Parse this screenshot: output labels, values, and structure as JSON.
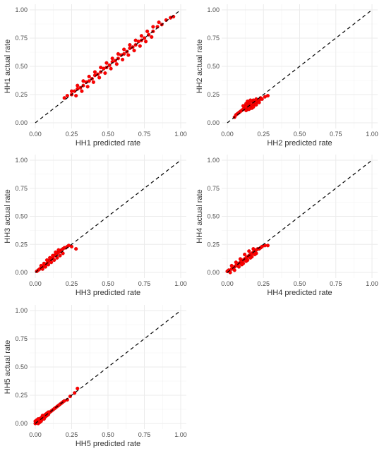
{
  "chart_data": [
    {
      "type": "scatter",
      "xlabel": "HH1 predicted rate",
      "ylabel": "HH1 actual rate",
      "xlim": [
        0,
        1
      ],
      "ylim": [
        0,
        1
      ],
      "xticks": [
        "0.00",
        "0.25",
        "0.50",
        "0.75",
        "1.00"
      ],
      "yticks": [
        "0.00",
        "0.25",
        "0.50",
        "0.75",
        "1.00"
      ],
      "grid": true,
      "reference_line": {
        "style": "dashed",
        "from": [
          0,
          0
        ],
        "to": [
          1,
          1
        ]
      },
      "point_color": "#ff0000",
      "points": [
        [
          0.2,
          0.22
        ],
        [
          0.22,
          0.24
        ],
        [
          0.25,
          0.25
        ],
        [
          0.27,
          0.28
        ],
        [
          0.29,
          0.3
        ],
        [
          0.31,
          0.31
        ],
        [
          0.33,
          0.33
        ],
        [
          0.35,
          0.36
        ],
        [
          0.37,
          0.37
        ],
        [
          0.39,
          0.39
        ],
        [
          0.41,
          0.42
        ],
        [
          0.43,
          0.43
        ],
        [
          0.45,
          0.45
        ],
        [
          0.47,
          0.48
        ],
        [
          0.49,
          0.49
        ],
        [
          0.51,
          0.51
        ],
        [
          0.53,
          0.54
        ],
        [
          0.55,
          0.55
        ],
        [
          0.57,
          0.57
        ],
        [
          0.59,
          0.6
        ],
        [
          0.61,
          0.61
        ],
        [
          0.63,
          0.63
        ],
        [
          0.65,
          0.66
        ],
        [
          0.67,
          0.67
        ],
        [
          0.69,
          0.69
        ],
        [
          0.71,
          0.72
        ],
        [
          0.73,
          0.73
        ],
        [
          0.75,
          0.75
        ],
        [
          0.78,
          0.78
        ],
        [
          0.81,
          0.81
        ],
        [
          0.84,
          0.85
        ],
        [
          0.87,
          0.87
        ],
        [
          0.9,
          0.91
        ],
        [
          0.93,
          0.93
        ],
        [
          0.95,
          0.94
        ],
        [
          0.28,
          0.24
        ],
        [
          0.32,
          0.28
        ],
        [
          0.36,
          0.32
        ],
        [
          0.4,
          0.36
        ],
        [
          0.44,
          0.4
        ],
        [
          0.48,
          0.44
        ],
        [
          0.52,
          0.48
        ],
        [
          0.56,
          0.52
        ],
        [
          0.6,
          0.56
        ],
        [
          0.64,
          0.6
        ],
        [
          0.68,
          0.64
        ],
        [
          0.72,
          0.68
        ],
        [
          0.76,
          0.72
        ],
        [
          0.8,
          0.76
        ],
        [
          0.25,
          0.28
        ],
        [
          0.29,
          0.33
        ],
        [
          0.33,
          0.37
        ],
        [
          0.37,
          0.41
        ],
        [
          0.41,
          0.45
        ],
        [
          0.45,
          0.49
        ],
        [
          0.49,
          0.53
        ],
        [
          0.53,
          0.57
        ],
        [
          0.57,
          0.61
        ],
        [
          0.61,
          0.65
        ],
        [
          0.65,
          0.69
        ],
        [
          0.69,
          0.73
        ],
        [
          0.73,
          0.77
        ],
        [
          0.77,
          0.81
        ],
        [
          0.81,
          0.85
        ],
        [
          0.85,
          0.89
        ]
      ]
    },
    {
      "type": "scatter",
      "xlabel": "HH2 predicted rate",
      "ylabel": "HH2 actual rate",
      "xlim": [
        0,
        1
      ],
      "ylim": [
        0,
        1
      ],
      "xticks": [
        "0.00",
        "0.25",
        "0.50",
        "0.75",
        "1.00"
      ],
      "yticks": [
        "0.00",
        "0.25",
        "0.50",
        "0.75",
        "1.00"
      ],
      "grid": true,
      "reference_line": {
        "style": "dashed",
        "from": [
          0,
          0
        ],
        "to": [
          1,
          1
        ]
      },
      "point_color": "#ff0000",
      "points": [
        [
          0.05,
          0.05
        ],
        [
          0.06,
          0.07
        ],
        [
          0.07,
          0.08
        ],
        [
          0.08,
          0.09
        ],
        [
          0.09,
          0.1
        ],
        [
          0.1,
          0.11
        ],
        [
          0.11,
          0.12
        ],
        [
          0.12,
          0.13
        ],
        [
          0.12,
          0.15
        ],
        [
          0.13,
          0.14
        ],
        [
          0.13,
          0.17
        ],
        [
          0.14,
          0.12
        ],
        [
          0.14,
          0.16
        ],
        [
          0.15,
          0.15
        ],
        [
          0.15,
          0.18
        ],
        [
          0.16,
          0.13
        ],
        [
          0.16,
          0.16
        ],
        [
          0.17,
          0.15
        ],
        [
          0.17,
          0.19
        ],
        [
          0.18,
          0.17
        ],
        [
          0.18,
          0.2
        ],
        [
          0.19,
          0.16
        ],
        [
          0.19,
          0.19
        ],
        [
          0.2,
          0.18
        ],
        [
          0.2,
          0.21
        ],
        [
          0.21,
          0.19
        ],
        [
          0.22,
          0.2
        ],
        [
          0.23,
          0.22
        ],
        [
          0.24,
          0.21
        ],
        [
          0.26,
          0.23
        ],
        [
          0.28,
          0.24
        ],
        [
          0.11,
          0.15
        ],
        [
          0.13,
          0.11
        ],
        [
          0.15,
          0.12
        ],
        [
          0.17,
          0.13
        ],
        [
          0.14,
          0.19
        ],
        [
          0.16,
          0.2
        ],
        [
          0.18,
          0.14
        ],
        [
          0.2,
          0.16
        ],
        [
          0.22,
          0.18
        ]
      ]
    },
    {
      "type": "scatter",
      "xlabel": "HH3 predicted rate",
      "ylabel": "HH3 actual rate",
      "xlim": [
        0,
        1
      ],
      "ylim": [
        0,
        1
      ],
      "xticks": [
        "0.00",
        "0.25",
        "0.50",
        "0.75",
        "1.00"
      ],
      "yticks": [
        "0.00",
        "0.25",
        "0.50",
        "0.75",
        "1.00"
      ],
      "grid": true,
      "reference_line": {
        "style": "dashed",
        "from": [
          0,
          0
        ],
        "to": [
          1,
          1
        ]
      },
      "point_color": "#ff0000",
      "points": [
        [
          0.01,
          0.01
        ],
        [
          0.02,
          0.02
        ],
        [
          0.03,
          0.03
        ],
        [
          0.04,
          0.04
        ],
        [
          0.05,
          0.05
        ],
        [
          0.06,
          0.06
        ],
        [
          0.07,
          0.07
        ],
        [
          0.08,
          0.08
        ],
        [
          0.09,
          0.1
        ],
        [
          0.1,
          0.11
        ],
        [
          0.11,
          0.12
        ],
        [
          0.12,
          0.13
        ],
        [
          0.13,
          0.15
        ],
        [
          0.14,
          0.16
        ],
        [
          0.15,
          0.17
        ],
        [
          0.16,
          0.18
        ],
        [
          0.17,
          0.19
        ],
        [
          0.18,
          0.2
        ],
        [
          0.19,
          0.21
        ],
        [
          0.2,
          0.22
        ],
        [
          0.21,
          0.22
        ],
        [
          0.22,
          0.23
        ],
        [
          0.23,
          0.24
        ],
        [
          0.25,
          0.23
        ],
        [
          0.28,
          0.21
        ],
        [
          0.05,
          0.03
        ],
        [
          0.07,
          0.05
        ],
        [
          0.09,
          0.07
        ],
        [
          0.11,
          0.09
        ],
        [
          0.13,
          0.11
        ],
        [
          0.15,
          0.13
        ],
        [
          0.17,
          0.15
        ],
        [
          0.19,
          0.17
        ],
        [
          0.04,
          0.06
        ],
        [
          0.06,
          0.08
        ],
        [
          0.08,
          0.11
        ],
        [
          0.1,
          0.13
        ],
        [
          0.12,
          0.15
        ],
        [
          0.14,
          0.18
        ],
        [
          0.16,
          0.2
        ]
      ]
    },
    {
      "type": "scatter",
      "xlabel": "HH4 predicted rate",
      "ylabel": "HH4 actual rate",
      "xlim": [
        0,
        1
      ],
      "ylim": [
        0,
        1
      ],
      "xticks": [
        "0.00",
        "0.25",
        "0.50",
        "0.75",
        "1.00"
      ],
      "yticks": [
        "0.00",
        "0.25",
        "0.50",
        "0.75",
        "1.00"
      ],
      "grid": true,
      "reference_line": {
        "style": "dashed",
        "from": [
          0,
          0
        ],
        "to": [
          1,
          1
        ]
      },
      "point_color": "#ff0000",
      "points": [
        [
          0.0,
          0.01
        ],
        [
          0.01,
          0.02
        ],
        [
          0.02,
          0.0
        ],
        [
          0.03,
          0.03
        ],
        [
          0.04,
          0.04
        ],
        [
          0.05,
          0.05
        ],
        [
          0.06,
          0.06
        ],
        [
          0.07,
          0.07
        ],
        [
          0.08,
          0.08
        ],
        [
          0.09,
          0.09
        ],
        [
          0.1,
          0.1
        ],
        [
          0.11,
          0.11
        ],
        [
          0.12,
          0.12
        ],
        [
          0.13,
          0.13
        ],
        [
          0.14,
          0.14
        ],
        [
          0.15,
          0.15
        ],
        [
          0.16,
          0.16
        ],
        [
          0.17,
          0.17
        ],
        [
          0.18,
          0.18
        ],
        [
          0.19,
          0.19
        ],
        [
          0.2,
          0.2
        ],
        [
          0.21,
          0.21
        ],
        [
          0.22,
          0.21
        ],
        [
          0.23,
          0.22
        ],
        [
          0.24,
          0.23
        ],
        [
          0.26,
          0.24
        ],
        [
          0.28,
          0.24
        ],
        [
          0.05,
          0.02
        ],
        [
          0.08,
          0.05
        ],
        [
          0.11,
          0.08
        ],
        [
          0.14,
          0.11
        ],
        [
          0.17,
          0.14
        ],
        [
          0.2,
          0.17
        ],
        [
          0.03,
          0.06
        ],
        [
          0.06,
          0.09
        ],
        [
          0.09,
          0.12
        ],
        [
          0.12,
          0.16
        ],
        [
          0.15,
          0.19
        ],
        [
          0.18,
          0.21
        ],
        [
          0.1,
          0.07
        ],
        [
          0.13,
          0.1
        ],
        [
          0.16,
          0.13
        ],
        [
          0.19,
          0.16
        ]
      ]
    },
    {
      "type": "scatter",
      "xlabel": "HH5 predicted rate",
      "ylabel": "HH5 actual rate",
      "xlim": [
        0,
        1
      ],
      "ylim": [
        0,
        1
      ],
      "xticks": [
        "0.00",
        "0.25",
        "0.50",
        "0.75",
        "1.00"
      ],
      "yticks": [
        "0.00",
        "0.25",
        "0.50",
        "0.75",
        "1.00"
      ],
      "grid": true,
      "reference_line": {
        "style": "dashed",
        "from": [
          0,
          0
        ],
        "to": [
          1,
          1
        ]
      },
      "point_color": "#ff0000",
      "points": [
        [
          0.0,
          0.0
        ],
        [
          0.0,
          0.02
        ],
        [
          0.01,
          0.01
        ],
        [
          0.01,
          0.03
        ],
        [
          0.02,
          0.0
        ],
        [
          0.02,
          0.02
        ],
        [
          0.03,
          0.01
        ],
        [
          0.03,
          0.04
        ],
        [
          0.04,
          0.03
        ],
        [
          0.04,
          0.05
        ],
        [
          0.05,
          0.04
        ],
        [
          0.05,
          0.06
        ],
        [
          0.06,
          0.05
        ],
        [
          0.06,
          0.07
        ],
        [
          0.07,
          0.06
        ],
        [
          0.07,
          0.08
        ],
        [
          0.08,
          0.07
        ],
        [
          0.08,
          0.09
        ],
        [
          0.09,
          0.08
        ],
        [
          0.1,
          0.1
        ],
        [
          0.11,
          0.11
        ],
        [
          0.12,
          0.12
        ],
        [
          0.13,
          0.13
        ],
        [
          0.14,
          0.14
        ],
        [
          0.15,
          0.15
        ],
        [
          0.16,
          0.16
        ],
        [
          0.17,
          0.17
        ],
        [
          0.18,
          0.18
        ],
        [
          0.19,
          0.19
        ],
        [
          0.2,
          0.2
        ],
        [
          0.22,
          0.21
        ],
        [
          0.24,
          0.24
        ],
        [
          0.27,
          0.27
        ],
        [
          0.29,
          0.31
        ],
        [
          0.03,
          0.02
        ],
        [
          0.04,
          0.02
        ],
        [
          0.06,
          0.04
        ],
        [
          0.02,
          0.04
        ],
        [
          0.05,
          0.07
        ],
        [
          0.09,
          0.1
        ]
      ]
    }
  ]
}
